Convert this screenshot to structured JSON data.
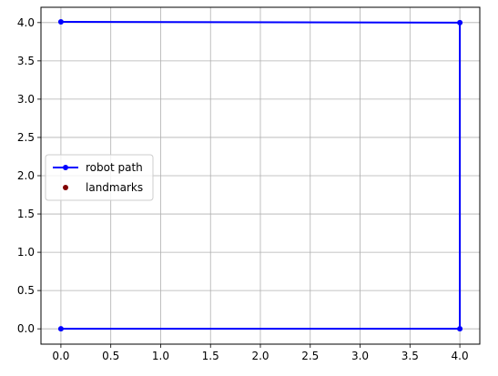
{
  "chart_data": {
    "type": "line",
    "title": "",
    "xlabel": "",
    "ylabel": "",
    "xlim": [
      -0.2,
      4.2
    ],
    "ylim": [
      -0.2,
      4.2
    ],
    "xticks": [
      0.0,
      0.5,
      1.0,
      1.5,
      2.0,
      2.5,
      3.0,
      3.5,
      4.0
    ],
    "yticks": [
      0.0,
      0.5,
      1.0,
      1.5,
      2.0,
      2.5,
      3.0,
      3.5,
      4.0
    ],
    "xtick_labels": [
      "0.0",
      "0.5",
      "1.0",
      "1.5",
      "2.0",
      "2.5",
      "3.0",
      "3.5",
      "4.0"
    ],
    "ytick_labels": [
      "0.0",
      "0.5",
      "1.0",
      "1.5",
      "2.0",
      "2.5",
      "3.0",
      "3.5",
      "4.0"
    ],
    "grid": true,
    "legend": {
      "placement": "center-left",
      "entries": [
        "robot path",
        "landmarks"
      ]
    },
    "series": [
      {
        "name": "robot path",
        "kind": "line-with-markers",
        "color": "#0000ff",
        "points": [
          {
            "x": 0.0,
            "y": 0.0
          },
          {
            "x": 4.0,
            "y": 0.0
          },
          {
            "x": 4.0,
            "y": 4.0
          },
          {
            "x": 0.0,
            "y": 4.01
          }
        ]
      },
      {
        "name": "landmarks",
        "kind": "scatter",
        "color": "#800000",
        "points": []
      }
    ]
  }
}
